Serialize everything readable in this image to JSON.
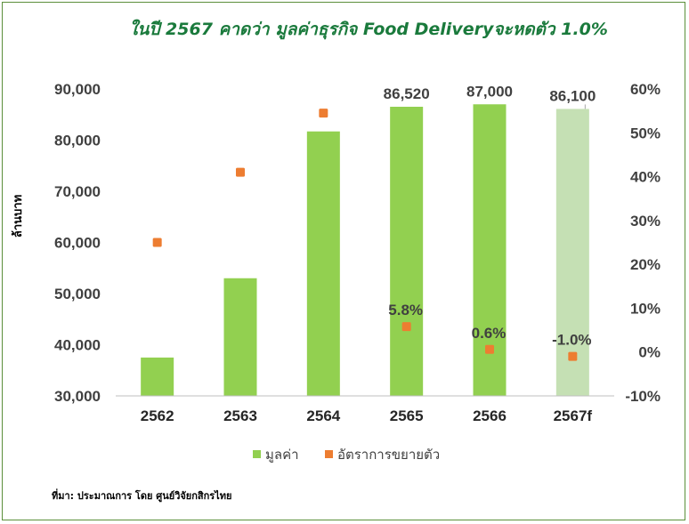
{
  "chart_data": {
    "type": "bar",
    "title": "ในปี  2567 คาดว่า มูลค่าธุรกิจ Food Deliveryจะหดตัว 1.0%",
    "ylabel": "ล้านบาท",
    "categories": [
      "2562",
      "2563",
      "2564",
      "2565",
      "2566",
      "2567f"
    ],
    "series": [
      {
        "name": "มูลค่า",
        "kind": "bar",
        "axis": "left",
        "color": "#92d050",
        "forecast_color": "#c5e0b4",
        "values": [
          37500,
          53000,
          81700,
          86520,
          87000,
          86100
        ],
        "labels": [
          "",
          "",
          "",
          "86,520",
          "87,000",
          "86,100"
        ]
      },
      {
        "name": "อัตราการขยายตัว",
        "kind": "scatter",
        "axis": "right",
        "color": "#ed7d31",
        "values": [
          25.0,
          41.0,
          54.5,
          5.8,
          0.6,
          -1.0
        ],
        "labels": [
          "",
          "",
          "",
          "5.8%",
          "0.6%",
          "-1.0%"
        ]
      }
    ],
    "ylim_left": [
      30000,
      90000
    ],
    "ylim_right": [
      -10,
      60
    ],
    "yticks_left": [
      "30,000",
      "40,000",
      "50,000",
      "60,000",
      "70,000",
      "80,000",
      "90,000"
    ],
    "yticks_right": [
      "-10%",
      "0%",
      "10%",
      "20%",
      "30%",
      "40%",
      "50%",
      "60%"
    ],
    "grid": false,
    "legend_position": "bottom"
  },
  "source": "ที่มา: ประมาณการ โดย ศูนย์วิจัยกสิกรไทย"
}
